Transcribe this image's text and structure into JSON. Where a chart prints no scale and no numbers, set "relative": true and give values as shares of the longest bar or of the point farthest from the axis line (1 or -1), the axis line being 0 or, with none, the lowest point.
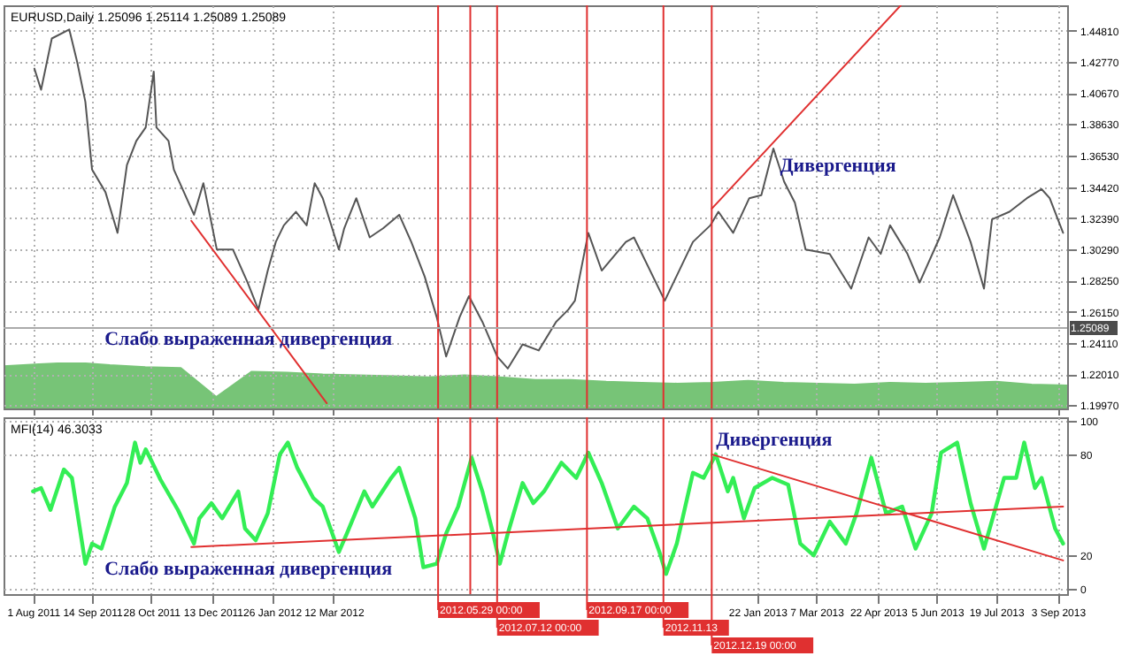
{
  "chart_data": [
    {
      "type": "line",
      "title": "EURUSD,Daily 1.25096 1.25114 1.25089 1.25089",
      "xlim": [
        "2011-07-10",
        "2013-09-10"
      ],
      "ylim": [
        1.1975,
        1.465
      ],
      "grid": true,
      "tick_labels": "y",
      "xticks": [
        {
          "value": "2011-08-01",
          "label": null
        },
        {
          "value": "2011-09-14",
          "label": null
        },
        {
          "value": "2011-10-28",
          "label": null
        },
        {
          "value": "2011-12-13",
          "label": null
        },
        {
          "value": "2012-01-26",
          "label": null
        },
        {
          "value": "2012-03-12",
          "label": null
        },
        {
          "value": "2013-01-22",
          "label": null
        },
        {
          "value": "2013-03-07",
          "label": null
        },
        {
          "value": "2013-04-22",
          "label": null
        },
        {
          "value": "2013-06-05",
          "label": null
        },
        {
          "value": "2013-07-19",
          "label": null
        },
        {
          "value": "2013-09-03",
          "label": null
        }
      ],
      "yticks": [
        {
          "value": 1.4481,
          "label": "1.44810"
        },
        {
          "value": 1.4277,
          "label": "1.42770"
        },
        {
          "value": 1.4067,
          "label": "1.40670"
        },
        {
          "value": 1.3863,
          "label": "1.38630"
        },
        {
          "value": 1.3653,
          "label": "1.36530"
        },
        {
          "value": 1.3442,
          "label": "1.34420"
        },
        {
          "value": 1.3239,
          "label": "1.32390"
        },
        {
          "value": 1.3029,
          "label": "1.30290"
        },
        {
          "value": 1.2825,
          "label": "1.28250"
        },
        {
          "value": 1.2615,
          "label": "1.26150"
        },
        {
          "value": 1.2411,
          "label": "1.24110"
        },
        {
          "value": 1.2201,
          "label": "1.22010"
        },
        {
          "value": 1.1997,
          "label": "1.19970"
        }
      ],
      "x": [
        "2011-08-02",
        "2011-08-07",
        "2011-08-15",
        "2011-08-28",
        "2011-09-03",
        "2011-09-09",
        "2011-09-14",
        "2011-09-24",
        "2011-10-03",
        "2011-10-10",
        "2011-10-17",
        "2011-10-24",
        "2011-10-30",
        "2011-11-01",
        "2011-11-10",
        "2011-11-14",
        "2011-11-29",
        "2011-12-06",
        "2011-12-16",
        "2011-12-28",
        "2012-01-08",
        "2012-01-16",
        "2012-01-23",
        "2012-01-29",
        "2012-02-04",
        "2012-02-13",
        "2012-02-21",
        "2012-02-27",
        "2012-03-04",
        "2012-03-16",
        "2012-03-20",
        "2012-03-29",
        "2012-04-08",
        "2012-04-18",
        "2012-04-30",
        "2012-05-09",
        "2012-05-19",
        "2012-05-28",
        "2012-06-04",
        "2012-06-14",
        "2012-06-21",
        "2012-07-01",
        "2012-07-12",
        "2012-07-20",
        "2012-07-31",
        "2012-08-12",
        "2012-08-25",
        "2012-09-03",
        "2012-09-08",
        "2012-09-18",
        "2012-09-28",
        "2012-10-16",
        "2012-10-22",
        "2012-11-14",
        "2012-12-05",
        "2012-12-18",
        "2012-12-24",
        "2013-01-04",
        "2013-01-16",
        "2013-01-25",
        "2013-02-03",
        "2013-02-11",
        "2013-02-19",
        "2013-02-27",
        "2013-03-17",
        "2013-04-02",
        "2013-04-15",
        "2013-04-24",
        "2013-05-01",
        "2013-05-14",
        "2013-05-23",
        "2013-06-07",
        "2013-06-17",
        "2013-06-30",
        "2013-07-10",
        "2013-07-16",
        "2013-07-29",
        "2013-08-11",
        "2013-08-22",
        "2013-08-28",
        "2013-09-07"
      ],
      "series": [
        {
          "color": "#555555",
          "values": [
            1.423,
            1.409,
            1.443,
            1.449,
            1.427,
            1.401,
            1.356,
            1.341,
            1.314,
            1.359,
            1.375,
            1.384,
            1.421,
            1.384,
            1.375,
            1.356,
            1.326,
            1.347,
            1.303,
            1.303,
            1.281,
            1.263,
            1.289,
            1.308,
            1.319,
            1.328,
            1.319,
            1.347,
            1.337,
            1.303,
            1.317,
            1.337,
            1.311,
            1.317,
            1.326,
            1.308,
            1.285,
            1.258,
            1.232,
            1.258,
            1.272,
            1.255,
            1.232,
            1.224,
            1.24,
            1.236,
            1.255,
            1.263,
            1.269,
            1.314,
            1.289,
            1.308,
            1.311,
            1.269,
            1.308,
            1.319,
            1.328,
            1.314,
            1.337,
            1.339,
            1.37,
            1.348,
            1.334,
            1.303,
            1.3,
            1.277,
            1.311,
            1.3,
            1.319,
            1.3,
            1.281,
            1.311,
            1.339,
            1.308,
            1.277,
            1.323,
            1.328,
            1.337,
            1.343,
            1.337,
            1.314
          ]
        },
        {
          "type": "line",
          "color": "#e03030",
          "x": [
            "2011-11-27",
            "2012-03-07"
          ],
          "values": [
            1.322,
            1.201
          ]
        },
        {
          "type": "line",
          "color": "#e03030",
          "x": [
            "2012-12-19",
            "2013-05-09"
          ],
          "values": [
            1.33,
            1.465
          ]
        }
      ],
      "ref_lines": [
        {
          "axis": "x",
          "value": "2012-05-29",
          "label": null,
          "color": "#e03030"
        },
        {
          "axis": "x",
          "value": "2012-06-22",
          "label": null,
          "color": "#e03030"
        },
        {
          "axis": "x",
          "value": "2012-07-12",
          "label": null,
          "color": "#e03030"
        },
        {
          "axis": "x",
          "value": "2012-09-17",
          "label": null,
          "color": "#e03030"
        },
        {
          "axis": "x",
          "value": "2012-11-13",
          "label": null,
          "color": "#e03030"
        },
        {
          "axis": "x",
          "value": "2012-12-19",
          "label": null,
          "color": "#e03030"
        },
        {
          "axis": "y",
          "value": 1.25089,
          "label": "1.25089",
          "color": "#aaaaaa"
        }
      ],
      "annotations": [
        "Слабо выраженная дивергенция",
        "Дивергенция"
      ]
    },
    {
      "type": "area",
      "relative": true,
      "color": "#77c477",
      "categories": [
        null,
        null,
        null,
        null,
        null,
        null,
        null,
        null,
        null,
        null,
        null,
        null,
        null,
        null,
        null,
        null,
        null,
        null,
        null,
        null,
        null,
        null,
        null,
        null,
        null,
        null,
        null,
        null,
        null,
        null,
        null
      ],
      "values": [
        0.92,
        0.96,
        1.0,
        0.94,
        0.9,
        0.88,
        0.25,
        0.8,
        0.78,
        0.74,
        0.72,
        0.7,
        0.68,
        0.72,
        0.68,
        0.62,
        0.62,
        0.58,
        0.56,
        0.54,
        0.56,
        0.6,
        0.56,
        0.54,
        0.52,
        0.56,
        0.54,
        0.56,
        0.58,
        0.52,
        0.5
      ]
    },
    {
      "type": "line",
      "title": "MFI(14) 46.3033",
      "xlim": [
        "2011-07-10",
        "2013-09-10"
      ],
      "ylim": [
        -3,
        102
      ],
      "yticks": [
        0,
        20,
        80,
        100
      ],
      "grid": true,
      "xticks": [
        {
          "value": "2011-08-01",
          "label": "1 Aug 2011"
        },
        {
          "value": "2011-09-14",
          "label": "14 Sep 2011"
        },
        {
          "value": "2011-10-28",
          "label": "28 Oct 2011"
        },
        {
          "value": "2011-12-13",
          "label": "13 Dec 2011"
        },
        {
          "value": "2012-01-26",
          "label": "26 Jan 2012"
        },
        {
          "value": "2012-03-12",
          "label": "12 Mar 2012"
        },
        {
          "value": "2013-01-22",
          "label": "22 Jan 2013"
        },
        {
          "value": "2013-03-07",
          "label": "7 Mar 2013"
        },
        {
          "value": "2013-04-22",
          "label": "22 Apr 2013"
        },
        {
          "value": "2013-06-05",
          "label": "5 Jun 2013"
        },
        {
          "value": "2013-07-19",
          "label": "19 Jul 2013"
        },
        {
          "value": "2013-09-03",
          "label": "3 Sep 2013"
        }
      ],
      "x": [
        "2011-08-01",
        "2011-08-07",
        "2011-08-14",
        "2011-08-24",
        "2011-08-30",
        "2011-09-09",
        "2011-09-14",
        "2011-09-21",
        "2011-10-01",
        "2011-10-10",
        "2011-10-16",
        "2011-10-20",
        "2011-10-24",
        "2011-10-29",
        "2011-11-04",
        "2011-11-17",
        "2011-11-29",
        "2011-12-03",
        "2011-12-12",
        "2011-12-20",
        "2012-01-01",
        "2012-01-06",
        "2012-01-14",
        "2012-01-23",
        "2012-02-01",
        "2012-02-07",
        "2012-02-14",
        "2012-02-26",
        "2012-03-04",
        "2012-03-16",
        "2012-03-22",
        "2012-04-04",
        "2012-04-10",
        "2012-04-24",
        "2012-04-30",
        "2012-05-12",
        "2012-05-18",
        "2012-05-28",
        "2012-06-04",
        "2012-06-13",
        "2012-06-23",
        "2012-07-01",
        "2012-07-09",
        "2012-07-14",
        "2012-07-20",
        "2012-07-31",
        "2012-08-08",
        "2012-08-16",
        "2012-08-29",
        "2012-09-09",
        "2012-09-18",
        "2012-09-28",
        "2012-10-10",
        "2012-10-22",
        "2012-11-01",
        "2012-11-10",
        "2012-11-15",
        "2012-11-23",
        "2012-12-05",
        "2012-12-13",
        "2012-12-22",
        "2012-12-31",
        "2013-01-04",
        "2013-01-12",
        "2013-01-20",
        "2013-02-02",
        "2013-02-14",
        "2013-02-23",
        "2013-03-05",
        "2013-03-17",
        "2013-03-29",
        "2013-04-06",
        "2013-04-17",
        "2013-04-28",
        "2013-05-10",
        "2013-05-20",
        "2013-06-01",
        "2013-06-08",
        "2013-06-20",
        "2013-06-30",
        "2013-07-10",
        "2013-07-25",
        "2013-08-03",
        "2013-08-09",
        "2013-08-17",
        "2013-08-22",
        "2013-09-01",
        "2013-09-07"
      ],
      "series": [
        {
          "color": "#33ee55",
          "values": [
            58,
            60,
            47,
            71,
            66,
            15,
            27,
            24,
            49,
            63,
            87,
            75,
            83,
            75,
            65,
            47,
            27,
            42,
            51,
            42,
            58,
            36,
            29,
            45,
            80,
            87,
            72,
            54,
            49,
            22,
            33,
            58,
            49,
            66,
            72,
            42,
            13,
            15,
            33,
            49,
            78,
            58,
            33,
            15,
            33,
            63,
            51,
            58,
            75,
            66,
            81,
            63,
            36,
            49,
            42,
            22,
            9,
            27,
            69,
            66,
            80,
            58,
            66,
            42,
            60,
            66,
            62,
            27,
            20,
            40,
            27,
            45,
            78,
            45,
            49,
            24,
            45,
            81,
            87,
            51,
            24,
            66,
            66,
            87,
            60,
            66,
            36,
            27
          ]
        },
        {
          "type": "line",
          "color": "#e03030",
          "x": [
            "2011-11-27",
            "2013-09-07"
          ],
          "values": [
            25,
            49
          ]
        },
        {
          "type": "line",
          "color": "#e03030",
          "x": [
            "2012-12-19",
            "2013-09-07"
          ],
          "values": [
            80,
            17
          ]
        }
      ],
      "ref_lines": [
        {
          "axis": "x",
          "value": "2012-05-29",
          "label": "2012.05.29 00:00",
          "color": "#e03030"
        },
        {
          "axis": "x",
          "value": "2012-06-22",
          "label": null,
          "color": "#e03030"
        },
        {
          "axis": "x",
          "value": "2012-07-12",
          "label": "2012.07.12 00:00",
          "color": "#e03030"
        },
        {
          "axis": "x",
          "value": "2012-09-17",
          "label": "2012.09.17 00:00",
          "color": "#e03030"
        },
        {
          "axis": "x",
          "value": "2012-11-13",
          "label": "2012.11.13",
          "color": "#e03030"
        },
        {
          "axis": "x",
          "value": "2012-12-19",
          "label": "2012.12.19 00:00",
          "color": "#e03030"
        }
      ],
      "annotations": [
        "Слабо выраженная дивергенция",
        "Дивергенция"
      ]
    }
  ]
}
